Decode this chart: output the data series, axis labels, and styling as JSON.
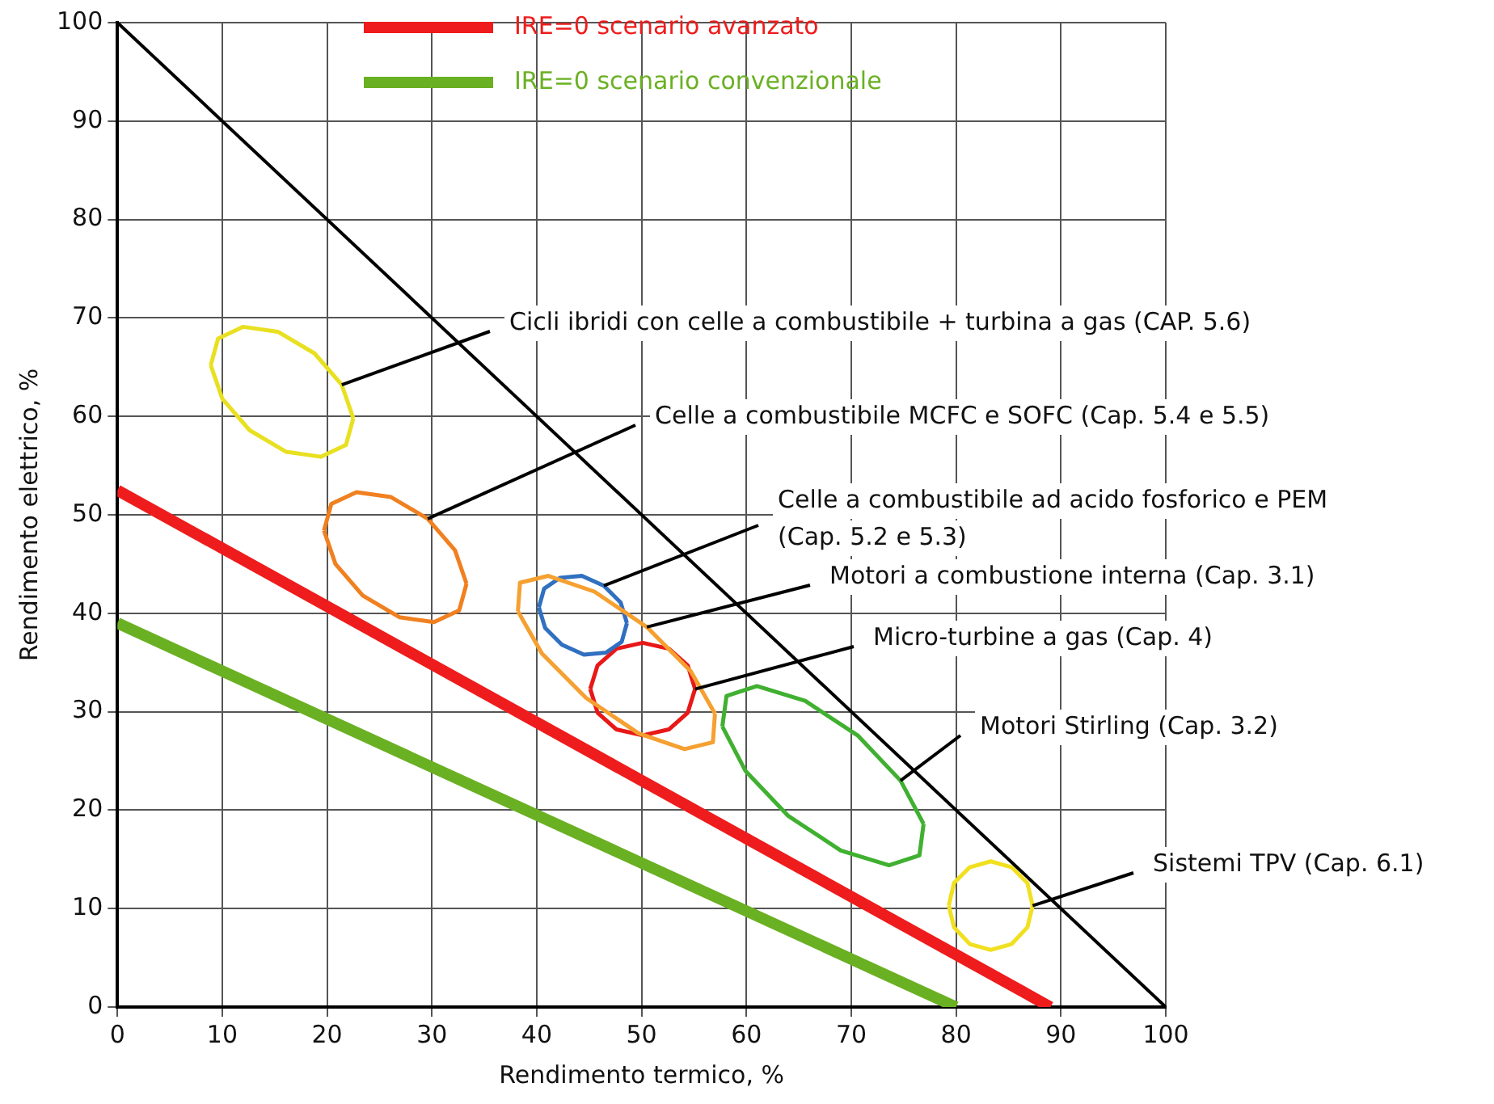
{
  "chart_data": {
    "type": "line",
    "xlabel": "Rendimento termico, %",
    "ylabel": "Rendimento elettrico, %",
    "xlim": [
      0,
      100
    ],
    "ylim": [
      0,
      100
    ],
    "xticks": [
      0,
      10,
      20,
      30,
      40,
      50,
      60,
      70,
      80,
      90,
      100
    ],
    "yticks": [
      0,
      10,
      20,
      30,
      40,
      50,
      60,
      70,
      80,
      90,
      100
    ],
    "grid": true,
    "legend": "top",
    "marker": "none",
    "line_style": "solid",
    "series": [
      {
        "color": "#000000",
        "x": [
          0,
          100
        ],
        "values": [
          100,
          0
        ]
      },
      {
        "name": "IRE=0 scenario avanzato",
        "color": "#ee1c1c",
        "x": [
          0,
          89
        ],
        "values": [
          52.5,
          0
        ]
      },
      {
        "name": "IRE=0 scenario convenzionale",
        "color": "#6ab023",
        "x": [
          0,
          80
        ],
        "values": [
          39,
          0
        ]
      },
      {
        "color": "#e8e020",
        "x": [
          8.9,
          9.6,
          12.0,
          15.3,
          18.8,
          21.4,
          22.5
        ],
        "values": [
          65.2,
          67.9,
          69.1,
          68.6,
          66.4,
          63.2,
          59.8
        ]
      },
      {
        "color": "#e8e020",
        "x": [
          8.9,
          10.0,
          12.6,
          16.1,
          19.4,
          21.8,
          22.5
        ],
        "values": [
          65.2,
          61.8,
          58.6,
          56.4,
          55.9,
          57.1,
          59.8
        ]
      },
      {
        "color": "#f08020",
        "x": [
          19.7,
          20.4,
          22.8,
          26.1,
          29.6,
          32.2,
          33.3
        ],
        "values": [
          48.4,
          51.1,
          52.3,
          51.8,
          49.6,
          46.4,
          43.0
        ]
      },
      {
        "color": "#f08020",
        "x": [
          19.7,
          20.8,
          23.4,
          26.9,
          30.2,
          32.6,
          33.3
        ],
        "values": [
          48.4,
          45.0,
          41.8,
          39.6,
          39.1,
          40.3,
          43.0
        ]
      },
      {
        "color": "#f5a030",
        "x": [
          38.2,
          38.4,
          41.1,
          45.5,
          50.5,
          54.7,
          57.0
        ],
        "values": [
          40.2,
          43.1,
          43.8,
          42.2,
          38.6,
          34.1,
          29.8
        ]
      },
      {
        "color": "#f5a030",
        "x": [
          38.2,
          40.5,
          44.7,
          49.7,
          54.1,
          56.8,
          57.0
        ],
        "values": [
          40.2,
          35.9,
          31.4,
          27.8,
          26.2,
          26.9,
          29.8
        ]
      },
      {
        "color": "#3070c0",
        "x": [
          40.2,
          40.7,
          42.2,
          44.3,
          46.4,
          48.0,
          48.6
        ],
        "values": [
          40.6,
          42.5,
          43.6,
          43.8,
          42.8,
          41.1,
          39.0
        ]
      },
      {
        "color": "#3070c0",
        "x": [
          40.2,
          40.8,
          42.4,
          44.5,
          46.6,
          48.1,
          48.6
        ],
        "values": [
          40.6,
          38.5,
          36.8,
          35.8,
          36.0,
          37.1,
          39.0
        ]
      },
      {
        "color": "#e81818",
        "x": [
          45.1,
          45.8,
          47.6,
          50.1,
          52.6,
          54.4,
          55.1
        ],
        "values": [
          32.3,
          34.7,
          36.4,
          37.0,
          36.4,
          34.7,
          32.3
        ]
      },
      {
        "color": "#e81818",
        "x": [
          45.1,
          45.8,
          47.6,
          50.1,
          52.6,
          54.4,
          55.1
        ],
        "values": [
          32.3,
          29.9,
          28.2,
          27.6,
          28.2,
          29.9,
          32.3
        ]
      },
      {
        "color": "#40b030",
        "x": [
          57.7,
          58.1,
          61.0,
          65.6,
          70.6,
          74.7,
          76.9
        ],
        "values": [
          28.5,
          31.6,
          32.6,
          31.1,
          27.6,
          23.0,
          18.6
        ]
      },
      {
        "color": "#40b030",
        "x": [
          57.7,
          59.9,
          64.0,
          69.0,
          73.6,
          76.5,
          76.9
        ],
        "values": [
          28.5,
          24.0,
          19.4,
          15.9,
          14.4,
          15.4,
          18.6
        ]
      },
      {
        "color": "#f0e020",
        "x": [
          79.3,
          79.8,
          81.3,
          83.3,
          85.3,
          86.8,
          87.3
        ],
        "values": [
          10.3,
          12.6,
          14.2,
          14.8,
          14.2,
          12.6,
          10.3
        ]
      },
      {
        "color": "#f0e020",
        "x": [
          79.3,
          79.8,
          81.3,
          83.3,
          85.3,
          86.8,
          87.3
        ],
        "values": [
          10.3,
          8.1,
          6.4,
          5.8,
          6.4,
          8.1,
          10.3
        ]
      }
    ],
    "annotations": [
      {
        "text": "Cicli ibridi con celle a combustibile + turbina a gas (CAP. 5.6)",
        "x": 21.4,
        "y": 63.2
      },
      {
        "text": "Celle a combustibile MCFC e SOFC (Cap. 5.4 e 5.5)",
        "x": 29.6,
        "y": 49.6
      },
      {
        "text": "Celle a combustibile ad acido fosforico e PEM\n(Cap. 5.2 e 5.3)",
        "x": 46.4,
        "y": 42.8
      },
      {
        "text": "Motori a combustione interna (Cap. 3.1)",
        "x": 50.5,
        "y": 38.6
      },
      {
        "text": "Micro-turbine a gas (Cap. 4)",
        "x": 55.1,
        "y": 32.3
      },
      {
        "text": "Motori Stirling (Cap. 3.2)",
        "x": 74.7,
        "y": 23.0
      },
      {
        "text": "Sistemi TPV (Cap. 6.1)",
        "x": 87.3,
        "y": 10.3
      }
    ]
  }
}
